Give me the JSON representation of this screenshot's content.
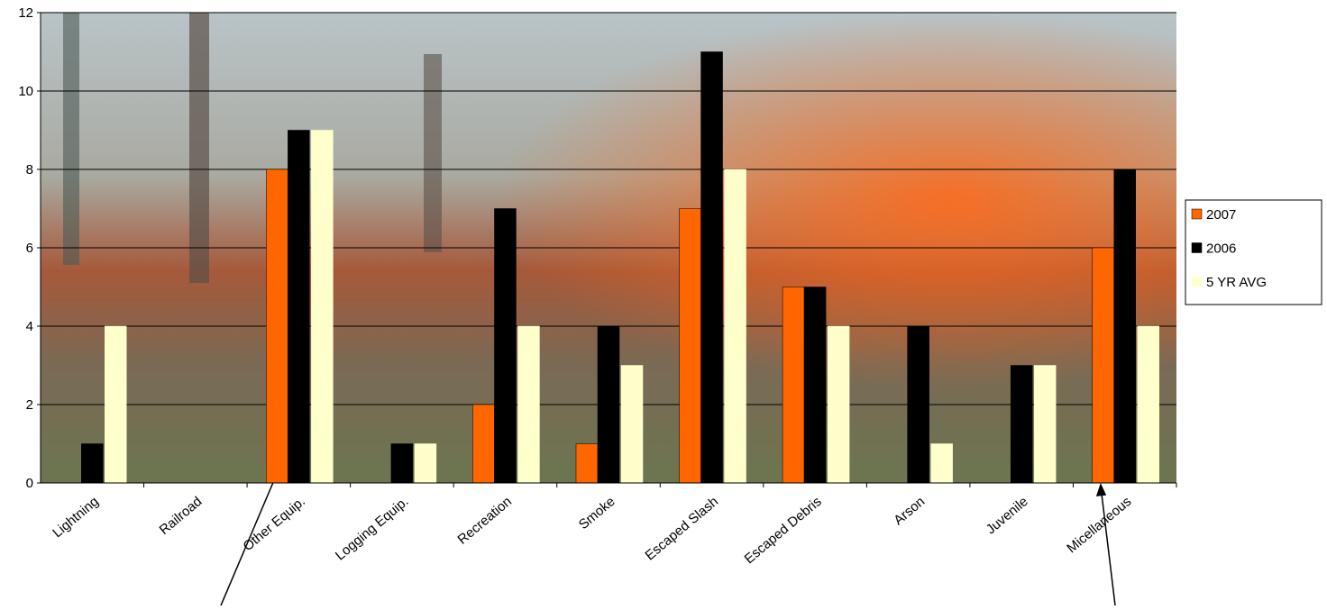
{
  "chart_data": {
    "type": "bar",
    "categories": [
      "Lightning",
      "Railroad",
      "Other Equip.",
      "Logging Equip.",
      "Recreation",
      "Smoke",
      "Escaped Slash",
      "Escaped Debris",
      "Arson",
      "Juvenile",
      "Micellaneous"
    ],
    "series": [
      {
        "name": "2007",
        "color": "#ff6600",
        "values": [
          0,
          0,
          8,
          0,
          2,
          1,
          7,
          5,
          0,
          0,
          6
        ]
      },
      {
        "name": "2006",
        "color": "#000000",
        "values": [
          1,
          0,
          9,
          1,
          7,
          4,
          11,
          5,
          4,
          3,
          8
        ]
      },
      {
        "name": "5 YR AVG",
        "color": "#ffffcc",
        "values": [
          4,
          0,
          9,
          1,
          4,
          3,
          8,
          4,
          1,
          3,
          4
        ]
      }
    ],
    "ylim": [
      0,
      12
    ],
    "yticks": [
      0,
      2,
      4,
      6,
      8,
      10,
      12
    ],
    "grid": true,
    "legend": "right"
  }
}
